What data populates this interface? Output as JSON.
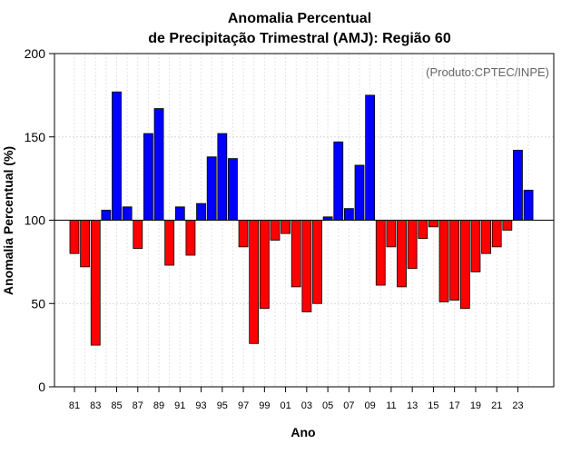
{
  "chart_data": {
    "type": "bar",
    "title_line1": "Anomalia Percentual",
    "title_line2": "de Precipitação Trimestral (AMJ): Região 60",
    "xlabel": "Ano",
    "ylabel": "Anomalia Percentual (%)",
    "credit": "(Produto:CPTEC/INPE)",
    "baseline": 100,
    "ylim": [
      0,
      200
    ],
    "yticks": [
      0,
      50,
      100,
      150,
      200
    ],
    "ytick_labels": [
      "0",
      "50",
      "100",
      "150",
      "200"
    ],
    "categories": [
      "81",
      "82",
      "83",
      "84",
      "85",
      "86",
      "87",
      "88",
      "89",
      "90",
      "91",
      "92",
      "93",
      "94",
      "95",
      "96",
      "97",
      "98",
      "99",
      "00",
      "01",
      "02",
      "03",
      "04",
      "05",
      "06",
      "07",
      "08",
      "09",
      "10",
      "11",
      "12",
      "13",
      "14",
      "15",
      "16",
      "17",
      "18",
      "19",
      "20",
      "21",
      "22",
      "23",
      "24"
    ],
    "xtick_labels": [
      "81",
      "83",
      "85",
      "87",
      "89",
      "91",
      "93",
      "95",
      "97",
      "99",
      "01",
      "03",
      "05",
      "07",
      "09",
      "11",
      "13",
      "15",
      "17",
      "19",
      "21",
      "23"
    ],
    "values": [
      80,
      72,
      25,
      106,
      177,
      108,
      83,
      152,
      167,
      73,
      108,
      79,
      110,
      138,
      152,
      137,
      84,
      26,
      47,
      88,
      92,
      60,
      45,
      50,
      102,
      147,
      107,
      133,
      175,
      61,
      84,
      60,
      71,
      89,
      96,
      51,
      52,
      47,
      69,
      80,
      84,
      94,
      142,
      118
    ],
    "above_color": "#0000ff",
    "below_color": "#ff0000",
    "grid": true
  }
}
